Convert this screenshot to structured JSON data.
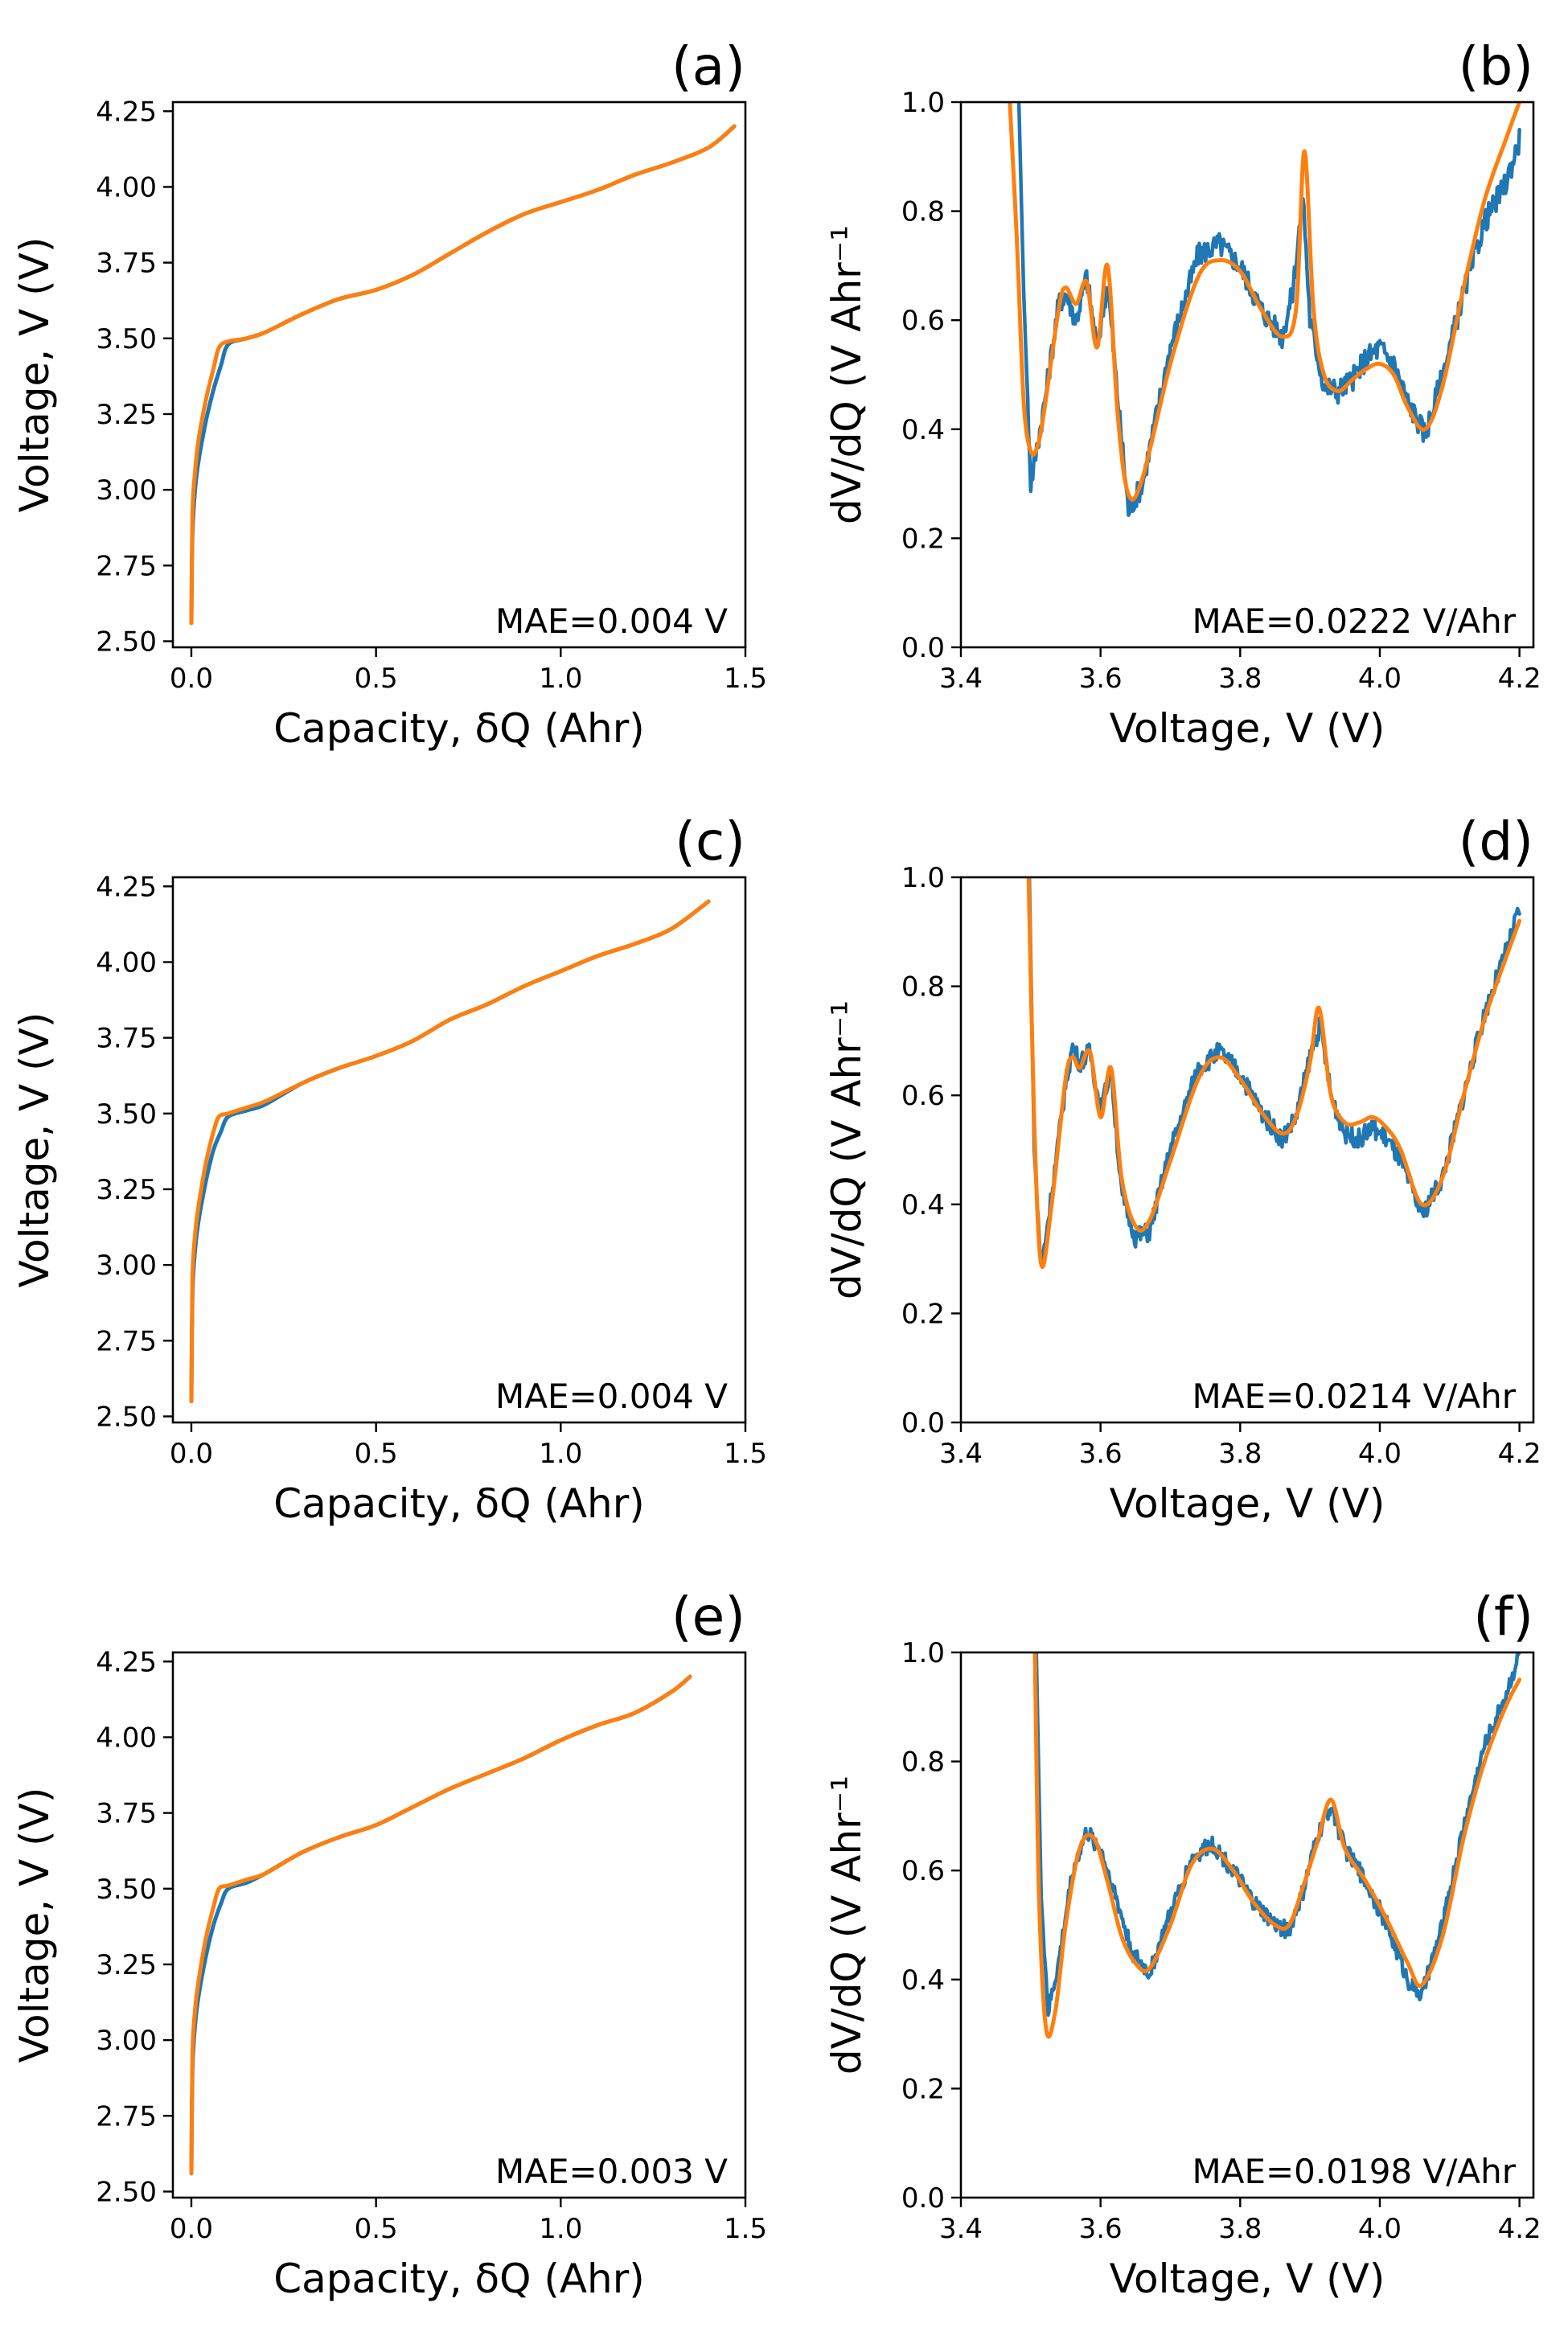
{
  "colors": {
    "measured": "#1f77b4",
    "fit": "#ff7f0e"
  },
  "chart_data": [
    {
      "id": "a",
      "type": "line",
      "panel_label": "(a)",
      "xlabel": "Capacity, δQ (Ahr)",
      "ylabel": "Voltage, V (V)",
      "xlim": [
        -0.05,
        1.5
      ],
      "ylim": [
        2.48,
        4.28
      ],
      "xticks": [
        "0.0",
        "0.5",
        "1.0",
        "1.5"
      ],
      "yticks": [
        "2.50",
        "2.75",
        "3.00",
        "3.25",
        "3.50",
        "3.75",
        "4.00",
        "4.25"
      ],
      "annotation": "MAE=0.004 V",
      "legend": "none",
      "grid": false,
      "series": [
        {
          "color": "measured",
          "x": [
            0,
            0.003,
            0.01,
            0.02,
            0.04,
            0.06,
            0.08,
            0.1,
            0.15,
            0.2,
            0.3,
            0.4,
            0.5,
            0.6,
            0.7,
            0.8,
            0.9,
            1.0,
            1.1,
            1.2,
            1.3,
            1.4,
            1.47
          ],
          "y": [
            2.56,
            2.85,
            3.0,
            3.1,
            3.23,
            3.33,
            3.41,
            3.48,
            3.5,
            3.52,
            3.58,
            3.63,
            3.66,
            3.71,
            3.78,
            3.85,
            3.91,
            3.95,
            3.99,
            4.04,
            4.08,
            4.13,
            4.2
          ]
        },
        {
          "color": "fit",
          "x": [
            0,
            0.003,
            0.01,
            0.02,
            0.04,
            0.06,
            0.075,
            0.1,
            0.15,
            0.2,
            0.3,
            0.4,
            0.5,
            0.6,
            0.7,
            0.8,
            0.9,
            1.0,
            1.1,
            1.2,
            1.3,
            1.4,
            1.47
          ],
          "y": [
            2.56,
            2.92,
            3.06,
            3.17,
            3.3,
            3.4,
            3.47,
            3.49,
            3.5,
            3.52,
            3.58,
            3.63,
            3.66,
            3.71,
            3.78,
            3.85,
            3.91,
            3.95,
            3.99,
            4.04,
            4.08,
            4.13,
            4.2
          ]
        }
      ]
    },
    {
      "id": "b",
      "type": "line",
      "panel_label": "(b)",
      "xlabel": "Voltage, V (V)",
      "ylabel": "dV/dQ (V Ahr⁻¹",
      "xlim": [
        3.4,
        4.22
      ],
      "ylim": [
        0,
        1
      ],
      "xticks": [
        "3.4",
        "3.6",
        "3.8",
        "4.0",
        "4.2"
      ],
      "yticks": [
        "0.0",
        "0.2",
        "0.4",
        "0.6",
        "0.8",
        "1.0"
      ],
      "annotation": "MAE=0.0222 V/Ahr",
      "legend": "none",
      "grid": false,
      "series": [
        {
          "color": "measured",
          "noise": 0.022,
          "x": [
            3.483,
            3.49,
            3.5,
            3.52,
            3.54,
            3.55,
            3.565,
            3.58,
            3.595,
            3.61,
            3.625,
            3.64,
            3.66,
            3.7,
            3.74,
            3.77,
            3.8,
            3.83,
            3.86,
            3.875,
            3.89,
            3.9,
            3.92,
            3.94,
            3.96,
            3.98,
            4.0,
            4.02,
            4.04,
            4.065,
            4.09,
            4.12,
            4.15,
            4.18,
            4.2
          ],
          "y": [
            1.0,
            0.65,
            0.3,
            0.45,
            0.63,
            0.65,
            0.6,
            0.68,
            0.55,
            0.67,
            0.45,
            0.25,
            0.3,
            0.55,
            0.72,
            0.74,
            0.7,
            0.62,
            0.57,
            0.65,
            0.83,
            0.6,
            0.48,
            0.47,
            0.49,
            0.53,
            0.55,
            0.52,
            0.45,
            0.39,
            0.5,
            0.65,
            0.78,
            0.85,
            0.93
          ]
        },
        {
          "color": "fit",
          "x": [
            3.47,
            3.48,
            3.49,
            3.5,
            3.51,
            3.52,
            3.54,
            3.55,
            3.565,
            3.58,
            3.595,
            3.61,
            3.625,
            3.64,
            3.66,
            3.7,
            3.74,
            3.77,
            3.8,
            3.83,
            3.86,
            3.88,
            3.892,
            3.905,
            3.92,
            3.94,
            3.96,
            3.98,
            4.0,
            4.02,
            4.04,
            4.065,
            4.09,
            4.12,
            4.15,
            4.18,
            4.2
          ],
          "y": [
            1.0,
            0.75,
            0.45,
            0.36,
            0.37,
            0.44,
            0.62,
            0.66,
            0.63,
            0.67,
            0.55,
            0.7,
            0.42,
            0.28,
            0.31,
            0.52,
            0.68,
            0.71,
            0.69,
            0.62,
            0.57,
            0.62,
            0.91,
            0.62,
            0.5,
            0.47,
            0.49,
            0.51,
            0.52,
            0.5,
            0.44,
            0.4,
            0.48,
            0.66,
            0.82,
            0.93,
            1.0
          ]
        }
      ]
    },
    {
      "id": "c",
      "type": "line",
      "panel_label": "(c)",
      "xlabel": "Capacity, δQ (Ahr)",
      "ylabel": "Voltage, V (V)",
      "xlim": [
        -0.05,
        1.5
      ],
      "ylim": [
        2.48,
        4.28
      ],
      "xticks": [
        "0.0",
        "0.5",
        "1.0",
        "1.5"
      ],
      "yticks": [
        "2.50",
        "2.75",
        "3.00",
        "3.25",
        "3.50",
        "3.75",
        "4.00",
        "4.25"
      ],
      "annotation": "MAE=0.004 V",
      "legend": "none",
      "grid": false,
      "series": [
        {
          "color": "measured",
          "x": [
            0,
            0.003,
            0.01,
            0.02,
            0.04,
            0.06,
            0.08,
            0.1,
            0.15,
            0.2,
            0.3,
            0.4,
            0.5,
            0.6,
            0.7,
            0.8,
            0.9,
            1.0,
            1.1,
            1.2,
            1.3,
            1.4
          ],
          "y": [
            2.55,
            2.9,
            3.05,
            3.15,
            3.28,
            3.38,
            3.44,
            3.49,
            3.51,
            3.53,
            3.6,
            3.65,
            3.69,
            3.74,
            3.81,
            3.86,
            3.92,
            3.97,
            4.02,
            4.06,
            4.11,
            4.2
          ]
        },
        {
          "color": "fit",
          "x": [
            0,
            0.003,
            0.01,
            0.02,
            0.04,
            0.06,
            0.075,
            0.1,
            0.15,
            0.2,
            0.3,
            0.4,
            0.5,
            0.6,
            0.7,
            0.8,
            0.9,
            1.0,
            1.1,
            1.2,
            1.3,
            1.4
          ],
          "y": [
            2.55,
            2.95,
            3.1,
            3.2,
            3.34,
            3.44,
            3.49,
            3.5,
            3.52,
            3.54,
            3.6,
            3.65,
            3.69,
            3.74,
            3.81,
            3.86,
            3.92,
            3.97,
            4.02,
            4.06,
            4.11,
            4.2
          ]
        }
      ]
    },
    {
      "id": "d",
      "type": "line",
      "panel_label": "(d)",
      "xlabel": "Voltage, V (V)",
      "ylabel": "dV/dQ (V Ahr⁻¹",
      "xlim": [
        3.4,
        4.22
      ],
      "ylim": [
        0,
        1
      ],
      "xticks": [
        "3.4",
        "3.6",
        "3.8",
        "4.0",
        "4.2"
      ],
      "yticks": [
        "0.0",
        "0.2",
        "0.4",
        "0.6",
        "0.8",
        "1.0"
      ],
      "annotation": "MAE=0.0214 V/Ahr",
      "legend": "none",
      "grid": false,
      "series": [
        {
          "color": "measured",
          "noise": 0.018,
          "x": [
            3.498,
            3.505,
            3.515,
            3.53,
            3.55,
            3.56,
            3.57,
            3.585,
            3.6,
            3.615,
            3.63,
            3.65,
            3.67,
            3.7,
            3.74,
            3.77,
            3.8,
            3.83,
            3.86,
            3.88,
            3.9,
            3.915,
            3.93,
            3.95,
            3.97,
            3.99,
            4.01,
            4.03,
            4.06,
            4.09,
            4.12,
            4.15,
            4.18,
            4.2
          ],
          "y": [
            1.0,
            0.5,
            0.28,
            0.42,
            0.62,
            0.69,
            0.66,
            0.68,
            0.57,
            0.65,
            0.42,
            0.34,
            0.35,
            0.5,
            0.65,
            0.68,
            0.64,
            0.57,
            0.52,
            0.56,
            0.67,
            0.73,
            0.6,
            0.53,
            0.52,
            0.54,
            0.52,
            0.48,
            0.38,
            0.45,
            0.6,
            0.75,
            0.86,
            0.94
          ]
        },
        {
          "color": "fit",
          "x": [
            3.497,
            3.505,
            3.515,
            3.53,
            3.55,
            3.56,
            3.57,
            3.585,
            3.6,
            3.615,
            3.63,
            3.65,
            3.67,
            3.7,
            3.74,
            3.77,
            3.8,
            3.83,
            3.86,
            3.88,
            3.9,
            3.913,
            3.93,
            3.95,
            3.97,
            3.99,
            4.01,
            4.03,
            4.06,
            4.09,
            4.12,
            4.15,
            4.18,
            4.2
          ],
          "y": [
            1.0,
            0.55,
            0.29,
            0.4,
            0.63,
            0.67,
            0.65,
            0.68,
            0.56,
            0.65,
            0.45,
            0.36,
            0.37,
            0.48,
            0.63,
            0.67,
            0.63,
            0.57,
            0.53,
            0.56,
            0.66,
            0.76,
            0.6,
            0.55,
            0.55,
            0.56,
            0.54,
            0.5,
            0.4,
            0.45,
            0.6,
            0.74,
            0.85,
            0.92
          ]
        }
      ]
    },
    {
      "id": "e",
      "type": "line",
      "panel_label": "(e)",
      "xlabel": "Capacity, δQ (Ahr)",
      "ylabel": "Voltage, V (V)",
      "xlim": [
        -0.05,
        1.5
      ],
      "ylim": [
        2.48,
        4.28
      ],
      "xticks": [
        "0.0",
        "0.5",
        "1.0",
        "1.5"
      ],
      "yticks": [
        "2.50",
        "2.75",
        "3.00",
        "3.25",
        "3.50",
        "3.75",
        "4.00",
        "4.25"
      ],
      "annotation": "MAE=0.003 V",
      "legend": "none",
      "grid": false,
      "series": [
        {
          "color": "measured",
          "x": [
            0,
            0.003,
            0.01,
            0.02,
            0.04,
            0.06,
            0.08,
            0.1,
            0.15,
            0.2,
            0.3,
            0.4,
            0.5,
            0.6,
            0.7,
            0.8,
            0.9,
            1.0,
            1.1,
            1.2,
            1.3,
            1.35
          ],
          "y": [
            2.56,
            2.9,
            3.05,
            3.15,
            3.28,
            3.38,
            3.45,
            3.5,
            3.52,
            3.55,
            3.62,
            3.67,
            3.71,
            3.77,
            3.83,
            3.88,
            3.93,
            3.99,
            4.04,
            4.08,
            4.15,
            4.2
          ]
        },
        {
          "color": "fit",
          "x": [
            0,
            0.003,
            0.01,
            0.02,
            0.04,
            0.06,
            0.075,
            0.1,
            0.15,
            0.2,
            0.3,
            0.4,
            0.5,
            0.6,
            0.7,
            0.8,
            0.9,
            1.0,
            1.1,
            1.2,
            1.3,
            1.35
          ],
          "y": [
            2.56,
            2.95,
            3.1,
            3.2,
            3.34,
            3.44,
            3.5,
            3.51,
            3.53,
            3.55,
            3.62,
            3.67,
            3.71,
            3.77,
            3.83,
            3.88,
            3.93,
            3.99,
            4.04,
            4.08,
            4.15,
            4.2
          ]
        }
      ]
    },
    {
      "id": "f",
      "type": "line",
      "panel_label": "(f)",
      "xlabel": "Voltage, V (V)",
      "ylabel": "dV/dQ (V Ahr⁻¹",
      "xlim": [
        3.4,
        4.22
      ],
      "ylim": [
        0,
        1
      ],
      "xticks": [
        "3.4",
        "3.6",
        "3.8",
        "4.0",
        "4.2"
      ],
      "yticks": [
        "0.0",
        "0.2",
        "0.4",
        "0.6",
        "0.8",
        "1.0"
      ],
      "annotation": "MAE=0.0198 V/Ahr",
      "legend": "none",
      "grid": false,
      "series": [
        {
          "color": "measured",
          "noise": 0.016,
          "x": [
            3.508,
            3.515,
            3.525,
            3.54,
            3.56,
            3.58,
            3.6,
            3.62,
            3.645,
            3.67,
            3.7,
            3.73,
            3.76,
            3.79,
            3.82,
            3.85,
            3.87,
            3.89,
            3.91,
            3.93,
            3.95,
            3.98,
            4.01,
            4.04,
            4.06,
            4.09,
            4.12,
            4.15,
            4.18,
            4.2
          ],
          "y": [
            1.0,
            0.55,
            0.34,
            0.43,
            0.6,
            0.67,
            0.64,
            0.56,
            0.45,
            0.41,
            0.52,
            0.62,
            0.65,
            0.6,
            0.54,
            0.5,
            0.49,
            0.56,
            0.66,
            0.72,
            0.64,
            0.58,
            0.5,
            0.4,
            0.37,
            0.5,
            0.68,
            0.83,
            0.92,
            1.0
          ]
        },
        {
          "color": "fit",
          "x": [
            3.506,
            3.512,
            3.522,
            3.535,
            3.55,
            3.57,
            3.59,
            3.61,
            3.63,
            3.65,
            3.67,
            3.7,
            3.73,
            3.76,
            3.79,
            3.82,
            3.85,
            3.87,
            3.89,
            3.91,
            3.93,
            3.95,
            3.98,
            4.01,
            4.04,
            4.06,
            4.09,
            4.12,
            4.15,
            4.18,
            4.2
          ],
          "y": [
            1.0,
            0.55,
            0.31,
            0.34,
            0.5,
            0.64,
            0.66,
            0.58,
            0.48,
            0.43,
            0.42,
            0.5,
            0.61,
            0.64,
            0.6,
            0.54,
            0.5,
            0.5,
            0.57,
            0.65,
            0.73,
            0.64,
            0.58,
            0.51,
            0.43,
            0.39,
            0.48,
            0.66,
            0.8,
            0.9,
            0.95
          ]
        }
      ]
    }
  ]
}
